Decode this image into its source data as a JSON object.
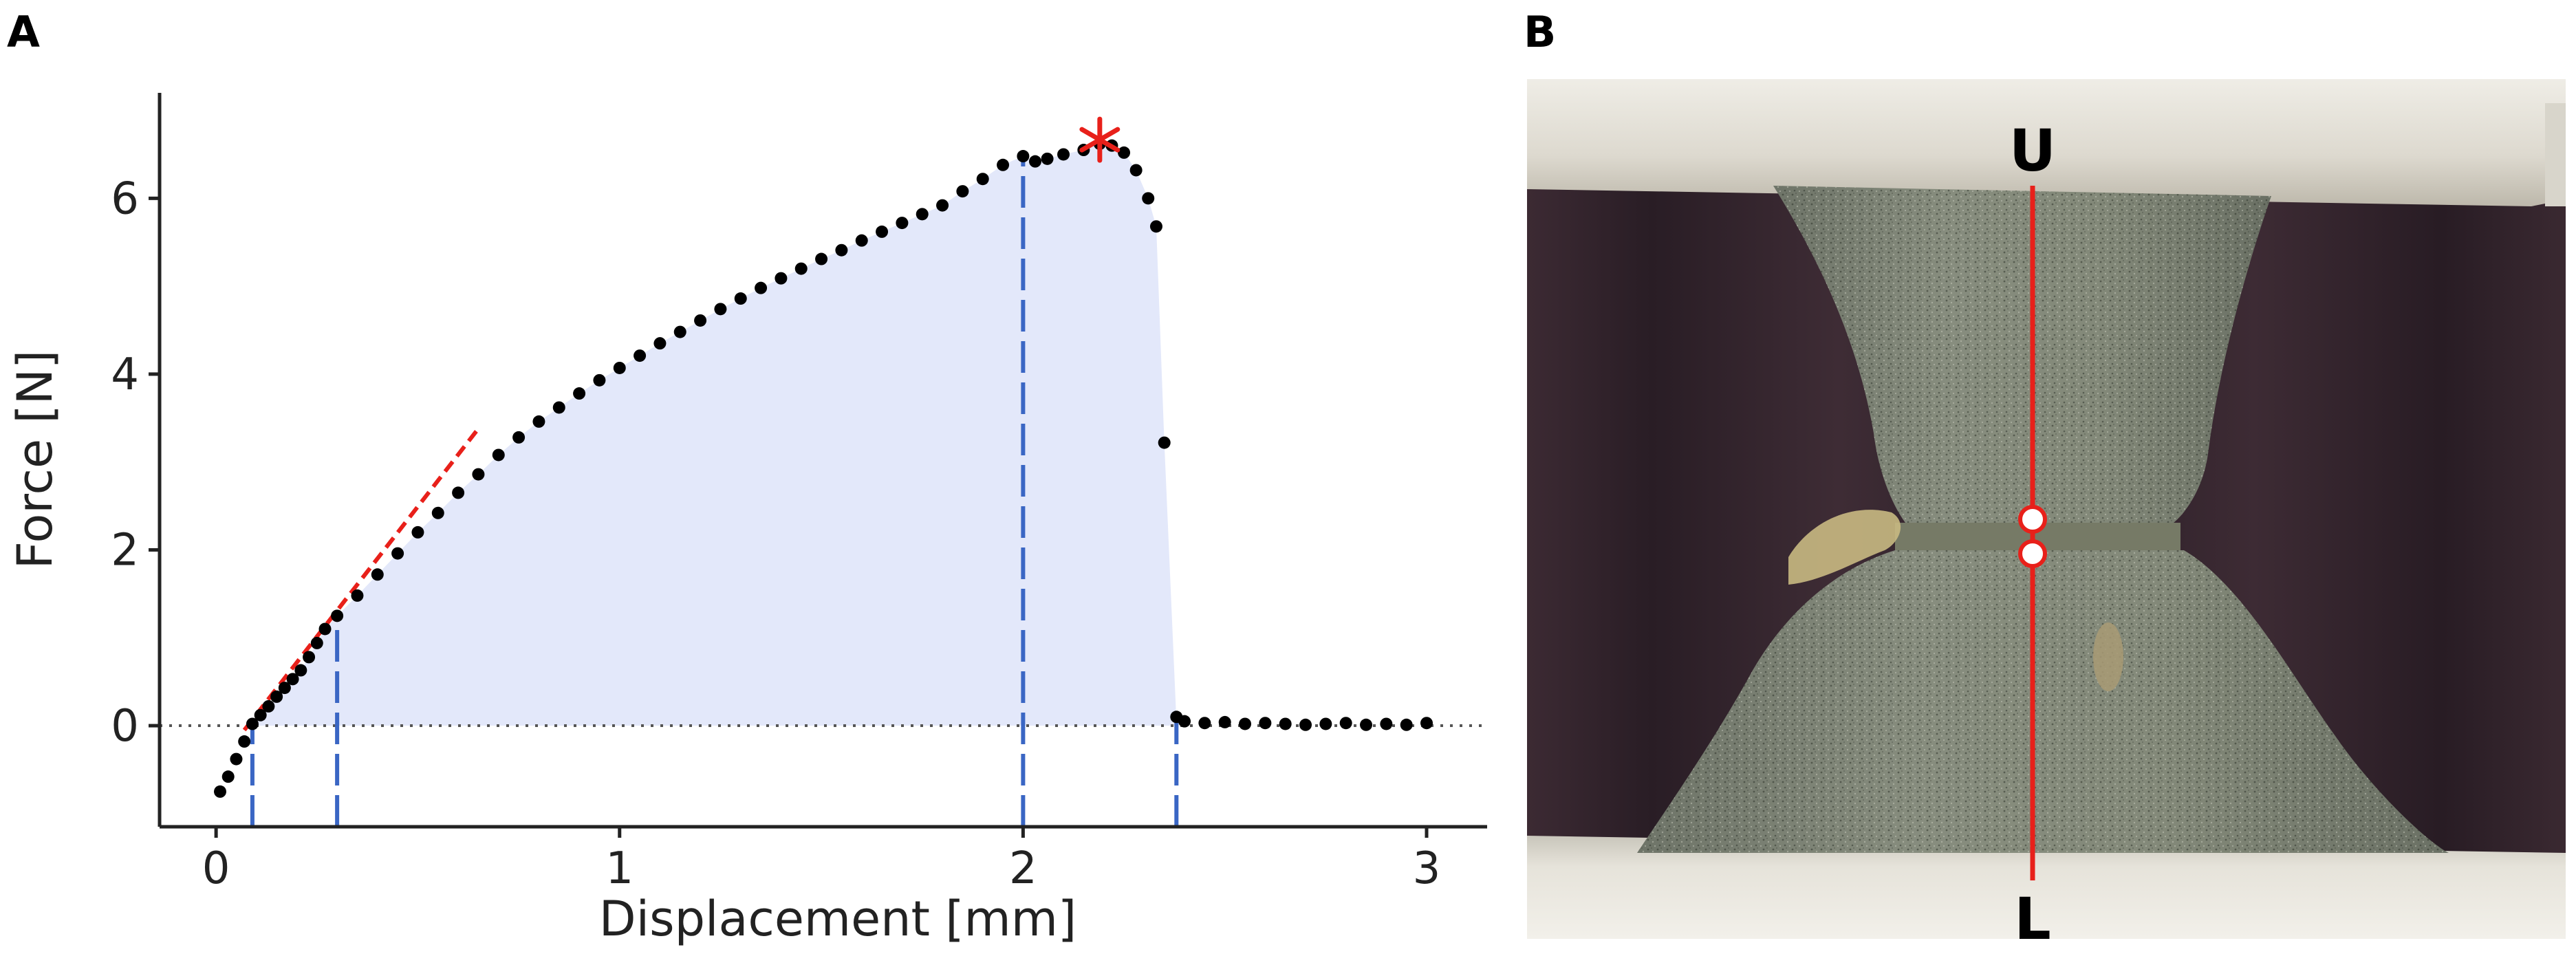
{
  "panels": {
    "a_letter": "A",
    "b_letter": "B"
  },
  "chart_data": {
    "type": "scatter",
    "xlabel": "Displacement [mm]",
    "ylabel": "Force [N]",
    "xlim": [
      -0.14,
      3.15
    ],
    "ylim": [
      -1.15,
      7.2
    ],
    "xticks": [
      0,
      1,
      2,
      3
    ],
    "yticks": [
      0,
      2,
      4,
      6
    ],
    "grid": false,
    "reference_line_y": 0,
    "fill_color": "#e3e8fa",
    "marker_color": "#000000",
    "points": [
      {
        "x": 0.01,
        "y": -0.75
      },
      {
        "x": 0.03,
        "y": -0.58
      },
      {
        "x": 0.05,
        "y": -0.38
      },
      {
        "x": 0.07,
        "y": -0.18
      },
      {
        "x": 0.09,
        "y": 0.02
      },
      {
        "x": 0.11,
        "y": 0.12
      },
      {
        "x": 0.13,
        "y": 0.22
      },
      {
        "x": 0.15,
        "y": 0.33
      },
      {
        "x": 0.17,
        "y": 0.43
      },
      {
        "x": 0.19,
        "y": 0.53
      },
      {
        "x": 0.21,
        "y": 0.63
      },
      {
        "x": 0.23,
        "y": 0.78
      },
      {
        "x": 0.25,
        "y": 0.94
      },
      {
        "x": 0.27,
        "y": 1.1
      },
      {
        "x": 0.3,
        "y": 1.25
      },
      {
        "x": 0.35,
        "y": 1.48
      },
      {
        "x": 0.4,
        "y": 1.72
      },
      {
        "x": 0.45,
        "y": 1.96
      },
      {
        "x": 0.5,
        "y": 2.2
      },
      {
        "x": 0.55,
        "y": 2.42
      },
      {
        "x": 0.6,
        "y": 2.65
      },
      {
        "x": 0.65,
        "y": 2.86
      },
      {
        "x": 0.7,
        "y": 3.08
      },
      {
        "x": 0.75,
        "y": 3.28
      },
      {
        "x": 0.8,
        "y": 3.46
      },
      {
        "x": 0.85,
        "y": 3.62
      },
      {
        "x": 0.9,
        "y": 3.78
      },
      {
        "x": 0.95,
        "y": 3.93
      },
      {
        "x": 1.0,
        "y": 4.07
      },
      {
        "x": 1.05,
        "y": 4.21
      },
      {
        "x": 1.1,
        "y": 4.35
      },
      {
        "x": 1.15,
        "y": 4.48
      },
      {
        "x": 1.2,
        "y": 4.61
      },
      {
        "x": 1.25,
        "y": 4.74
      },
      {
        "x": 1.3,
        "y": 4.86
      },
      {
        "x": 1.35,
        "y": 4.98
      },
      {
        "x": 1.4,
        "y": 5.09
      },
      {
        "x": 1.45,
        "y": 5.2
      },
      {
        "x": 1.5,
        "y": 5.31
      },
      {
        "x": 1.55,
        "y": 5.41
      },
      {
        "x": 1.6,
        "y": 5.52
      },
      {
        "x": 1.65,
        "y": 5.62
      },
      {
        "x": 1.7,
        "y": 5.72
      },
      {
        "x": 1.75,
        "y": 5.82
      },
      {
        "x": 1.8,
        "y": 5.92
      },
      {
        "x": 1.85,
        "y": 6.08
      },
      {
        "x": 1.9,
        "y": 6.22
      },
      {
        "x": 1.95,
        "y": 6.38
      },
      {
        "x": 2.0,
        "y": 6.48
      },
      {
        "x": 2.03,
        "y": 6.42
      },
      {
        "x": 2.06,
        "y": 6.45
      },
      {
        "x": 2.1,
        "y": 6.5
      },
      {
        "x": 2.15,
        "y": 6.55
      },
      {
        "x": 2.19,
        "y": 6.62
      },
      {
        "x": 2.22,
        "y": 6.6
      },
      {
        "x": 2.25,
        "y": 6.52
      },
      {
        "x": 2.28,
        "y": 6.32
      },
      {
        "x": 2.31,
        "y": 6.0
      },
      {
        "x": 2.33,
        "y": 5.68
      },
      {
        "x": 2.35,
        "y": 3.22
      },
      {
        "x": 2.38,
        "y": 0.1
      },
      {
        "x": 2.4,
        "y": 0.05
      },
      {
        "x": 2.45,
        "y": 0.03
      },
      {
        "x": 2.5,
        "y": 0.04
      },
      {
        "x": 2.55,
        "y": 0.02
      },
      {
        "x": 2.6,
        "y": 0.03
      },
      {
        "x": 2.65,
        "y": 0.02
      },
      {
        "x": 2.7,
        "y": 0.01
      },
      {
        "x": 2.75,
        "y": 0.02
      },
      {
        "x": 2.8,
        "y": 0.03
      },
      {
        "x": 2.85,
        "y": 0.01
      },
      {
        "x": 2.9,
        "y": 0.02
      },
      {
        "x": 2.95,
        "y": 0.01
      },
      {
        "x": 3.0,
        "y": 0.03
      }
    ],
    "vertical_lines": [
      {
        "x": 0.09,
        "y_top": 0.02
      },
      {
        "x": 0.3,
        "y_top": 1.25
      },
      {
        "x": 2.0,
        "y_top": 6.48
      },
      {
        "x": 2.38,
        "y_top": 0.1
      }
    ],
    "slope_line": {
      "x1": 0.07,
      "y1": -0.05,
      "x2": 0.65,
      "y2": 3.38
    },
    "max_marker": {
      "x": 2.19,
      "y": 6.62,
      "color": "#e8201a"
    }
  },
  "photo": {
    "top_label": "U",
    "bottom_label": "L",
    "line_color": "#e8201a"
  }
}
